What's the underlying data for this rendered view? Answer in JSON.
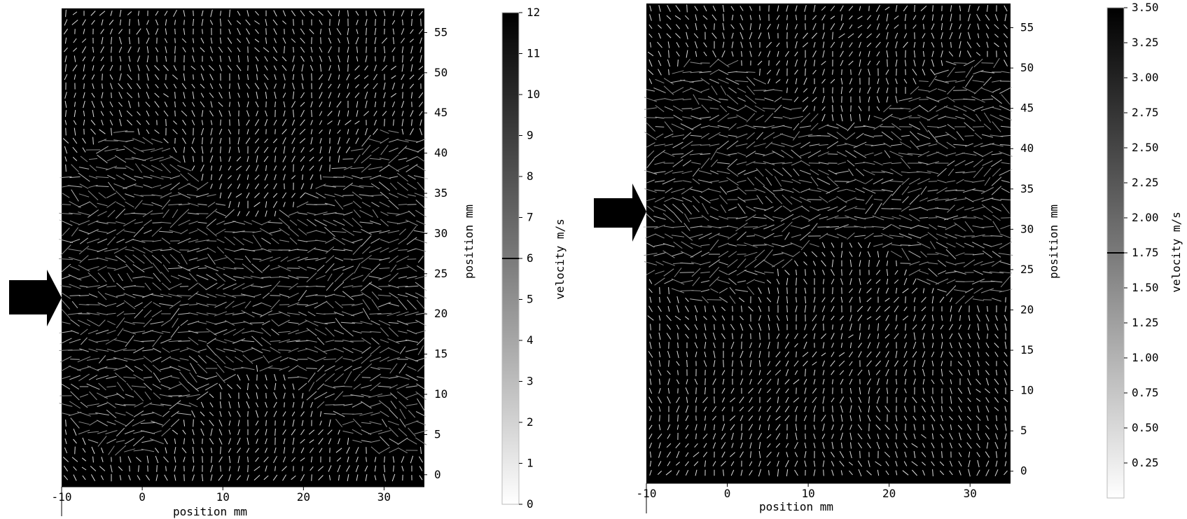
{
  "chart_data": [
    {
      "type": "vector_field",
      "xlabel": "position mm",
      "ylabel": "position mm",
      "xlim": [
        -10,
        35
      ],
      "ylim": [
        -1.5,
        58
      ],
      "xticks": [
        -10,
        0,
        10,
        20,
        30
      ],
      "yticks": [
        0,
        5,
        10,
        15,
        20,
        25,
        30,
        35,
        40,
        45,
        50,
        55
      ],
      "colorbar": {
        "label": "velocity m/s",
        "min": 0,
        "max": 12,
        "ticks": [
          0,
          1,
          2,
          3,
          4,
          5,
          6,
          7,
          8,
          9,
          10,
          11,
          12
        ],
        "tick_labels": [
          "0",
          "1",
          "2",
          "3",
          "4",
          "5",
          "6",
          "7",
          "8",
          "9",
          "10",
          "11",
          "12"
        ],
        "marker": 6
      },
      "inlet_arrow_y": 22,
      "jet_region_y": [
        4,
        41
      ],
      "grid": false
    },
    {
      "type": "vector_field",
      "xlabel": "position mm",
      "ylabel": "position mm",
      "xlim": [
        -10,
        35
      ],
      "ylim": [
        -1.5,
        58
      ],
      "xticks": [
        -10,
        0,
        10,
        20,
        30
      ],
      "yticks": [
        0,
        5,
        10,
        15,
        20,
        25,
        30,
        35,
        40,
        45,
        50,
        55
      ],
      "colorbar": {
        "label": "velocity m/s",
        "min": 0,
        "max": 3.5,
        "ticks": [
          0.25,
          0.5,
          0.75,
          1.0,
          1.25,
          1.5,
          1.75,
          2.0,
          2.25,
          2.5,
          2.75,
          3.0,
          3.25,
          3.5
        ],
        "tick_labels": [
          "0.25",
          "0.50",
          "0.75",
          "1.00",
          "1.25",
          "1.50",
          "1.75",
          "2.00",
          "2.25",
          "2.50",
          "2.75",
          "3.00",
          "3.25",
          "3.50"
        ],
        "marker": 1.75
      },
      "inlet_arrow_y": 32,
      "jet_region_y": [
        22,
        50
      ],
      "grid": false
    }
  ]
}
